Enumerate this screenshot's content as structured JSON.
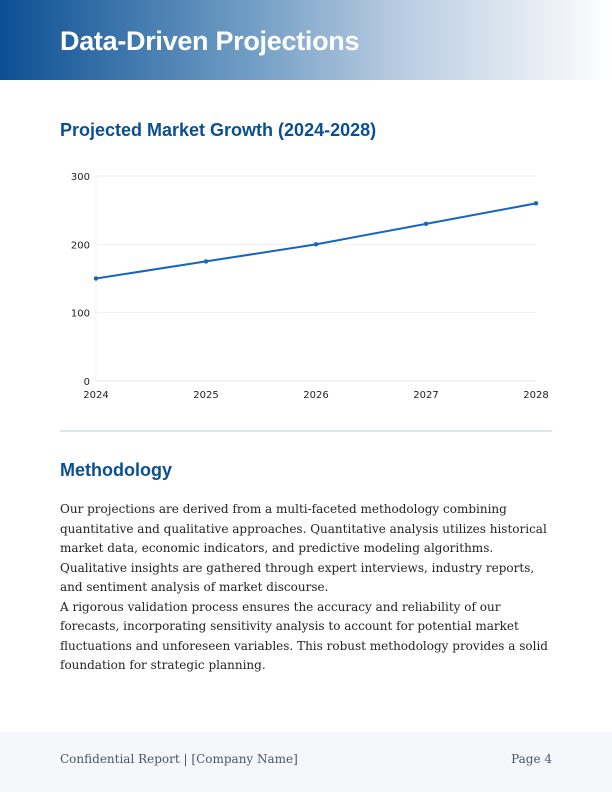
{
  "header": {
    "title": "Data-Driven Projections"
  },
  "chart_section": {
    "title": "Projected Market Growth (2024-2028)"
  },
  "chart_data": {
    "type": "line",
    "title": "",
    "x": [
      "2024",
      "2025",
      "2026",
      "2027",
      "2028"
    ],
    "series": [
      {
        "values": [
          150,
          175,
          200,
          230,
          260
        ],
        "color": "#1565c0"
      }
    ],
    "ylim": [
      0,
      300
    ],
    "yticks": [
      0,
      100,
      200,
      300
    ],
    "grid": true,
    "xlabel": "",
    "ylabel": ""
  },
  "methodology": {
    "title": "Methodology",
    "paragraphs": [
      "Our projections are derived from a multi-faceted methodology combining quantitative and qualitative approaches. Quantitative analysis utilizes historical market data, economic indicators, and predictive modeling algorithms. Qualitative insights are gathered through expert interviews, industry reports, and sentiment analysis of market discourse.",
      "A rigorous validation process ensures the accuracy and reliability of our forecasts, incorporating sensitivity analysis to account for potential market fluctuations and unforeseen variables. This robust methodology provides a solid foundation for strategic planning."
    ]
  },
  "footer": {
    "left": "Confidential Report | [Company Name]",
    "right": "Page 4"
  }
}
